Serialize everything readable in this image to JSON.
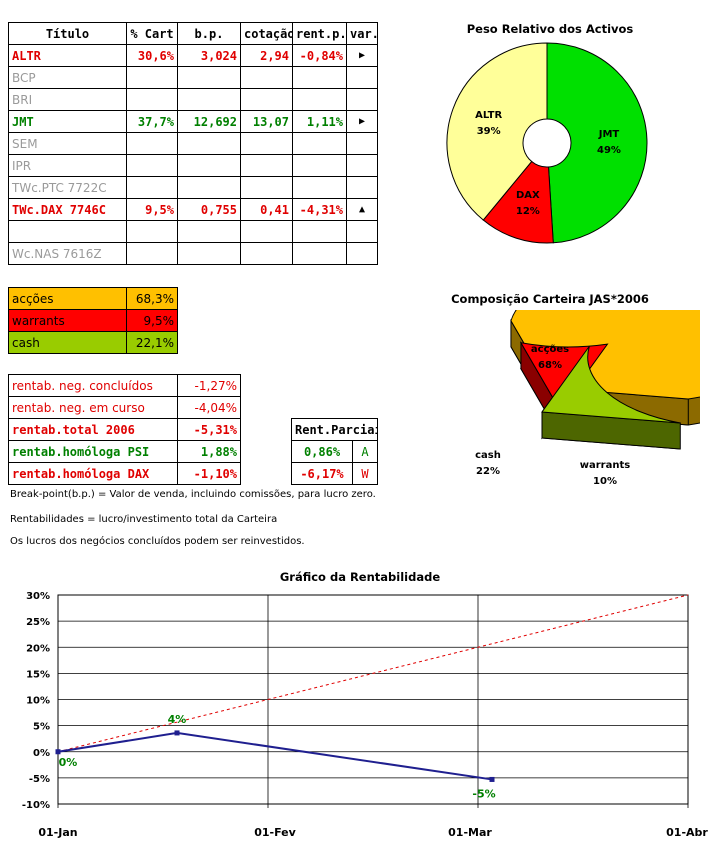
{
  "portfolio": {
    "headers": [
      "Título",
      "% Cart",
      "b.p.",
      "cotação",
      "rent.p.",
      "var."
    ],
    "rows": [
      {
        "titulo": "ALTR",
        "cart": "30,6%",
        "bp": "3,024",
        "cot": "2,94",
        "rent": "-0,84%",
        "var": "▶",
        "style": "red",
        "varcolor": "#000"
      },
      {
        "titulo": "BCP",
        "cart": "",
        "bp": "",
        "cot": "",
        "rent": "",
        "var": "",
        "style": "gray"
      },
      {
        "titulo": "BRI",
        "cart": "",
        "bp": "",
        "cot": "",
        "rent": "",
        "var": "",
        "style": "gray"
      },
      {
        "titulo": "JMT",
        "cart": "37,7%",
        "bp": "12,692",
        "cot": "13,07",
        "rent": "1,11%",
        "var": "▶",
        "style": "green",
        "varcolor": "#000"
      },
      {
        "titulo": "SEM",
        "cart": "",
        "bp": "",
        "cot": "",
        "rent": "",
        "var": "",
        "style": "gray"
      },
      {
        "titulo": "IPR",
        "cart": "",
        "bp": "",
        "cot": "",
        "rent": "",
        "var": "",
        "style": "gray"
      },
      {
        "titulo": "TWc.PTC 7722C",
        "cart": "",
        "bp": "",
        "cot": "",
        "rent": "",
        "var": "",
        "style": "gray"
      },
      {
        "titulo": "TWc.DAX 7746C",
        "cart": "9,5%",
        "bp": "0,755",
        "cot": "0,41",
        "rent": "-4,31%",
        "var": "▲",
        "style": "red",
        "varcolor": "#000"
      },
      {
        "titulo": "",
        "cart": "",
        "bp": "",
        "cot": "",
        "rent": "",
        "var": "",
        "style": "gray"
      },
      {
        "titulo": "Wc.NAS 7616Z",
        "cart": "",
        "bp": "",
        "cot": "",
        "rent": "",
        "var": "",
        "style": "gray"
      }
    ]
  },
  "allocation": [
    {
      "label": "acções",
      "value": "68,3%",
      "bg": "#ffc000"
    },
    {
      "label": "warrants",
      "value": "9,5%",
      "bg": "#ff0000"
    },
    {
      "label": "cash",
      "value": "22,1%",
      "bg": "#99cc00"
    }
  ],
  "returns": [
    {
      "label": "rentab. neg. concluídos",
      "value": "-1,27%",
      "cls": "red-light"
    },
    {
      "label": "rentab. neg. em curso",
      "value": "-4,04%",
      "cls": "red-light"
    },
    {
      "label": "rentab.total 2006",
      "value": "-5,31%",
      "cls": "red"
    },
    {
      "label": "rentab.homóloga PSI",
      "value": "1,88%",
      "cls": "green"
    },
    {
      "label": "rentab.homóloga DAX",
      "value": "-1,10%",
      "cls": "red"
    }
  ],
  "partial": {
    "header": "Rent.Parciais",
    "rows": [
      {
        "value": "0,86%",
        "flag": "A",
        "cls": "green"
      },
      {
        "value": "-6,17%",
        "flag": "W",
        "cls": "red"
      }
    ]
  },
  "notes": [
    "Break-point(b.p.) = Valor de venda, incluindo comissões, para lucro zero.",
    "Rentabilidades = lucro/investimento total da Carteira",
    "Os lucros dos negócios concluídos podem ser reinvestidos."
  ],
  "chart_data": [
    {
      "type": "pie",
      "title": "Peso Relativo dos Activos",
      "slices": [
        {
          "label": "JMT",
          "pct": "49%",
          "value": 49,
          "color": "#00e000"
        },
        {
          "label": "DAX",
          "pct": "12%",
          "value": 12,
          "color": "#ff0000"
        },
        {
          "label": "ALTR",
          "pct": "39%",
          "value": 39,
          "color": "#ffff99"
        }
      ]
    },
    {
      "type": "pie",
      "title": "Composição Carteira JAS*2006",
      "slices": [
        {
          "label": "acções",
          "pct": "68%",
          "value": 68,
          "color": "#ffc000"
        },
        {
          "label": "warrants",
          "pct": "10%",
          "value": 10,
          "color": "#ff0000"
        },
        {
          "label": "cash",
          "pct": "22%",
          "value": 22,
          "color": "#99cc00"
        }
      ]
    },
    {
      "type": "line",
      "title": "Gráfico da Rentabilidade",
      "x_ticks": [
        "01-Jan",
        "01-Fev",
        "01-Mar",
        "01-Abr"
      ],
      "ylim": [
        -10,
        30
      ],
      "y_ticks": [
        "30%",
        "25%",
        "20%",
        "15%",
        "10%",
        "5%",
        "0%",
        "-5%",
        "-10%"
      ],
      "grid": true,
      "series": [
        {
          "style": "solid",
          "color": "#1f1f8f",
          "points": [
            {
              "day": 0,
              "y": 0,
              "label": "0%"
            },
            {
              "day": 17,
              "y": 3.6,
              "label": "4%"
            },
            {
              "day": 62,
              "y": -5.3,
              "label": "-5%"
            }
          ]
        },
        {
          "style": "dashed",
          "color": "#e00000",
          "points": [
            {
              "day": 0,
              "y": 0
            },
            {
              "day": 90,
              "y": 30
            }
          ]
        }
      ]
    }
  ]
}
